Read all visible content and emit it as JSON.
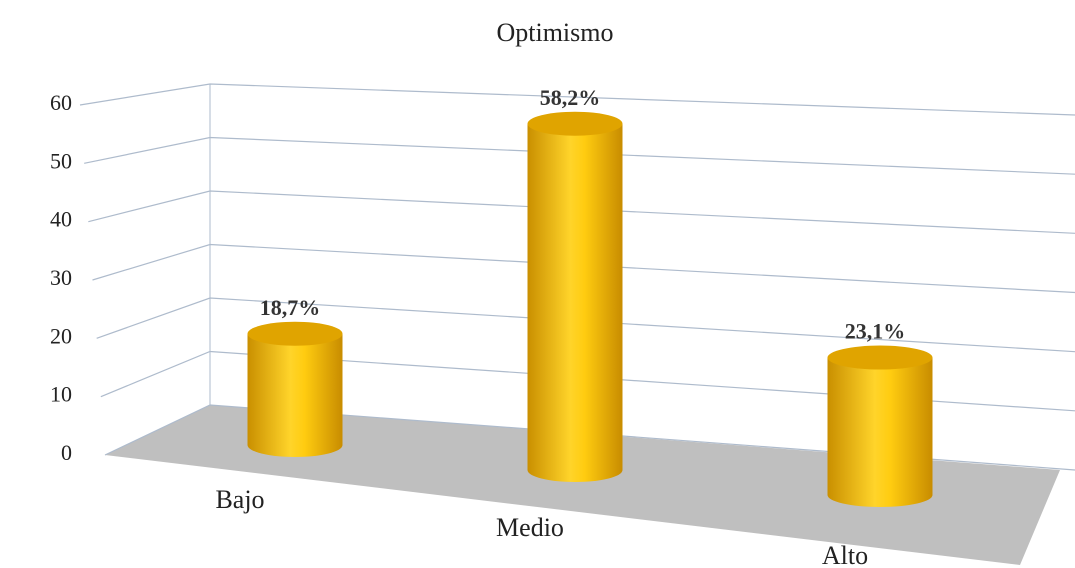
{
  "chart_data": {
    "type": "bar",
    "title": "Optimismo",
    "categories": [
      "Bajo",
      "Medio",
      "Alto"
    ],
    "values": [
      18.7,
      58.2,
      23.1
    ],
    "value_labels": [
      "18,7%",
      "58,2%",
      "23,1%"
    ],
    "color": "#ffc90e",
    "ylim": [
      0,
      60
    ],
    "yticks": [
      0,
      10,
      20,
      30,
      40,
      50,
      60
    ],
    "grid": true
  }
}
